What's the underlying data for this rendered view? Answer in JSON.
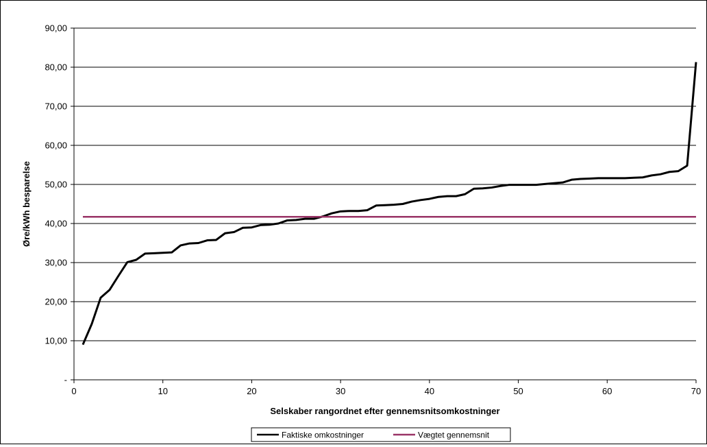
{
  "chart_data": {
    "type": "line",
    "title": "",
    "xlabel": "Selskaber rangordnet efter gennemsnitsomkostninger",
    "ylabel": "Øre/kWh besparelse",
    "xlim": [
      0,
      70
    ],
    "ylim": [
      0,
      90
    ],
    "x_ticks": [
      0,
      10,
      20,
      30,
      40,
      50,
      60,
      70
    ],
    "x_tick_labels": [
      "0",
      "10",
      "20",
      "30",
      "40",
      "50",
      "60",
      "70"
    ],
    "y_ticks": [
      0,
      10,
      20,
      30,
      40,
      50,
      60,
      70,
      80,
      90
    ],
    "y_tick_labels": [
      "-",
      "10,00",
      "20,00",
      "30,00",
      "40,00",
      "50,00",
      "60,00",
      "70,00",
      "80,00",
      "90,00"
    ],
    "grid": "horizontal",
    "legend_position": "bottom",
    "series": [
      {
        "name": "Faktiske omkostninger",
        "color": "#000000",
        "x": [
          1,
          2,
          3,
          4,
          5,
          6,
          7,
          8,
          9,
          10,
          11,
          12,
          13,
          14,
          15,
          16,
          17,
          18,
          19,
          20,
          21,
          22,
          23,
          24,
          25,
          26,
          27,
          28,
          29,
          30,
          31,
          32,
          33,
          34,
          35,
          36,
          37,
          38,
          39,
          40,
          41,
          42,
          43,
          44,
          45,
          46,
          47,
          48,
          49,
          50,
          51,
          52,
          53,
          54,
          55,
          56,
          57,
          58,
          59,
          60,
          61,
          62,
          63,
          64,
          65,
          66,
          67,
          68,
          69,
          70
        ],
        "values": [
          9.0,
          14.3,
          21.0,
          23.0,
          26.6,
          30.1,
          30.7,
          32.3,
          32.4,
          32.5,
          32.6,
          34.4,
          34.9,
          35.0,
          35.7,
          35.8,
          37.5,
          37.8,
          38.9,
          39.0,
          39.6,
          39.7,
          40.0,
          40.8,
          40.9,
          41.2,
          41.2,
          41.8,
          42.6,
          43.1,
          43.2,
          43.2,
          43.4,
          44.6,
          44.7,
          44.8,
          45.0,
          45.6,
          46.0,
          46.3,
          46.8,
          47.0,
          47.0,
          47.5,
          48.9,
          49.0,
          49.2,
          49.6,
          49.9,
          49.9,
          49.9,
          49.9,
          50.1,
          50.3,
          50.5,
          51.2,
          51.4,
          51.5,
          51.6,
          51.6,
          51.6,
          51.6,
          51.7,
          51.8,
          52.3,
          52.6,
          53.2,
          53.4,
          54.8,
          81.3
        ]
      },
      {
        "name": "Vægtet gennemsnit",
        "color": "#993366",
        "x": [
          1,
          70
        ],
        "values": [
          41.7,
          41.7
        ]
      }
    ]
  }
}
